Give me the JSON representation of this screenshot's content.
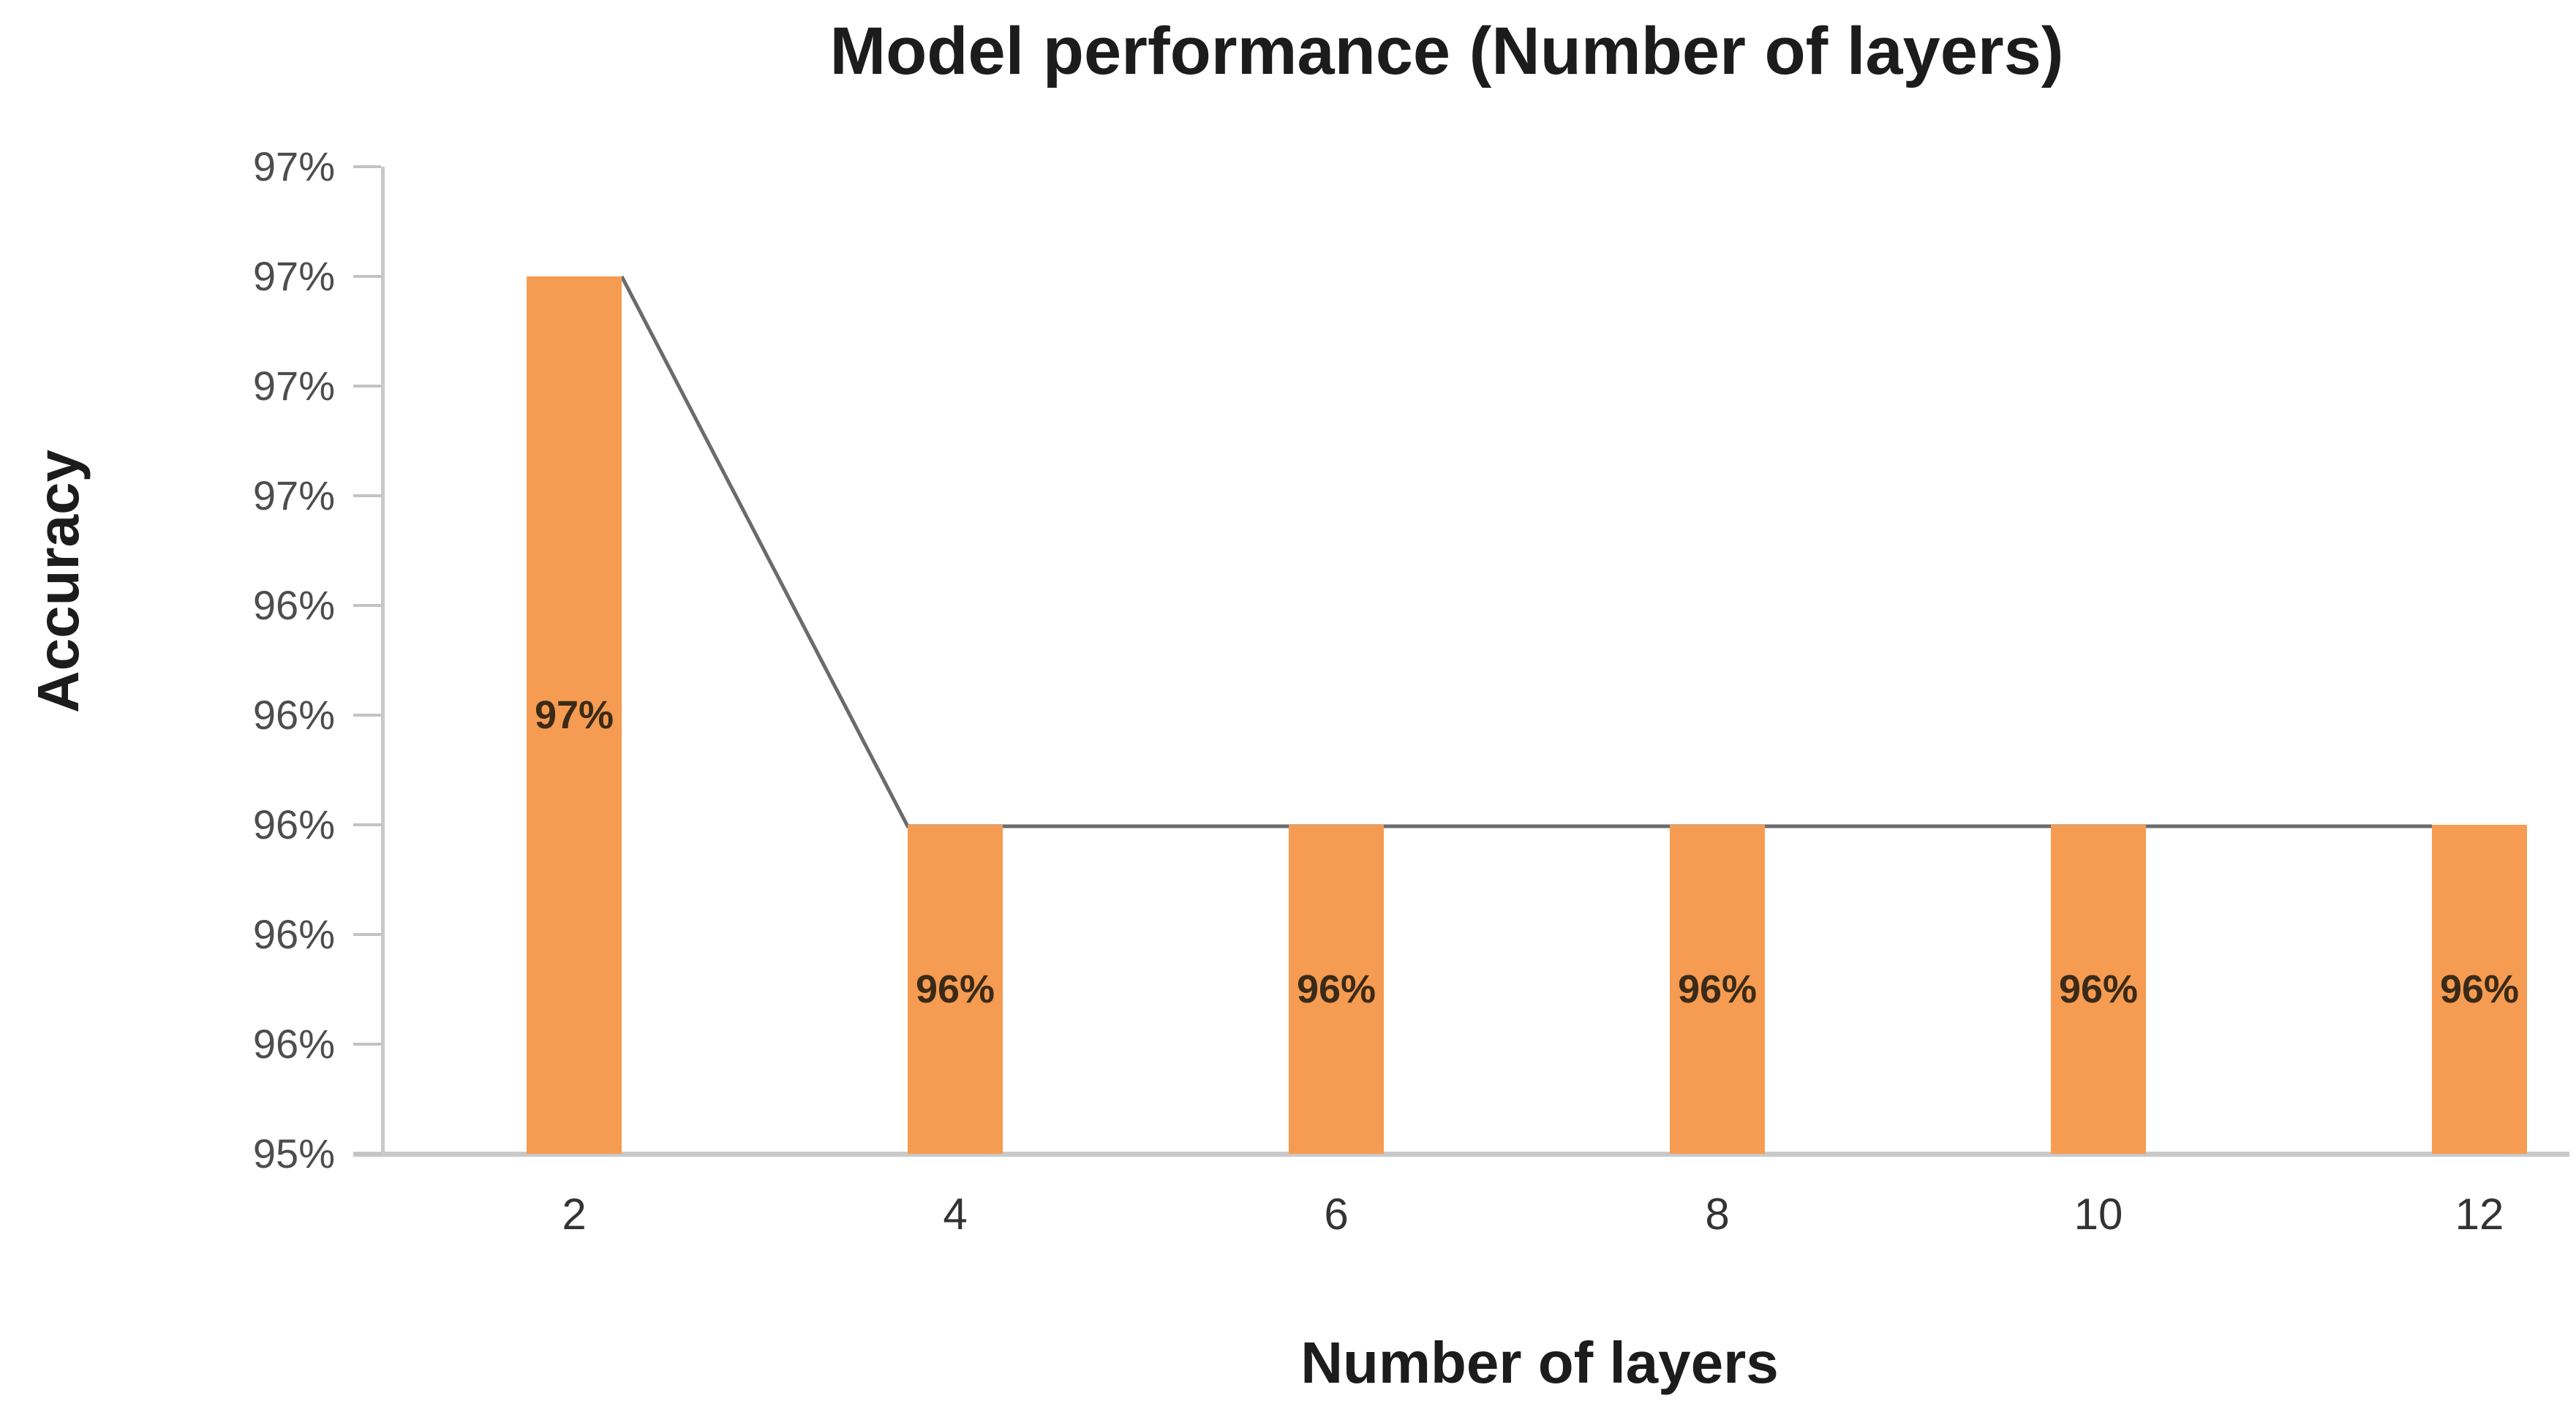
{
  "chart_data": {
    "type": "bar",
    "title": "Model performance (Number of layers)",
    "xlabel": "Number of layers",
    "ylabel": "Accuracy",
    "categories": [
      "2",
      "4",
      "6",
      "8",
      "10",
      "12"
    ],
    "values": [
      97,
      96,
      96,
      96,
      96,
      96
    ],
    "bar_labels": [
      "97%",
      "96%",
      "96%",
      "96%",
      "96%",
      "96%"
    ],
    "y_tick_labels_top_to_bottom": [
      "97%",
      "97%",
      "97%",
      "97%",
      "96%",
      "96%",
      "96%",
      "96%",
      "96%",
      "95%"
    ],
    "bar_top_tick_index_from_top": [
      1,
      6,
      6,
      6,
      6,
      6
    ],
    "axis_intervals": 9,
    "legend": "none",
    "grid": "off",
    "overlay_line": {
      "description": "gray series line connecting the tops of consecutive bars, visible in the gaps between bars",
      "color": "#6B6B6B"
    }
  },
  "style": {
    "background": "#FFFFFF",
    "bar_fill": "#F59C52",
    "bar_label_color": "#3B2A17",
    "series_line_color": "#6B6B6B",
    "axis_line_color": "#C9C9C9",
    "y_tick_label_color": "#4D4D4D",
    "x_tick_label_color": "#333333",
    "title_color": "#1C1C1C"
  }
}
